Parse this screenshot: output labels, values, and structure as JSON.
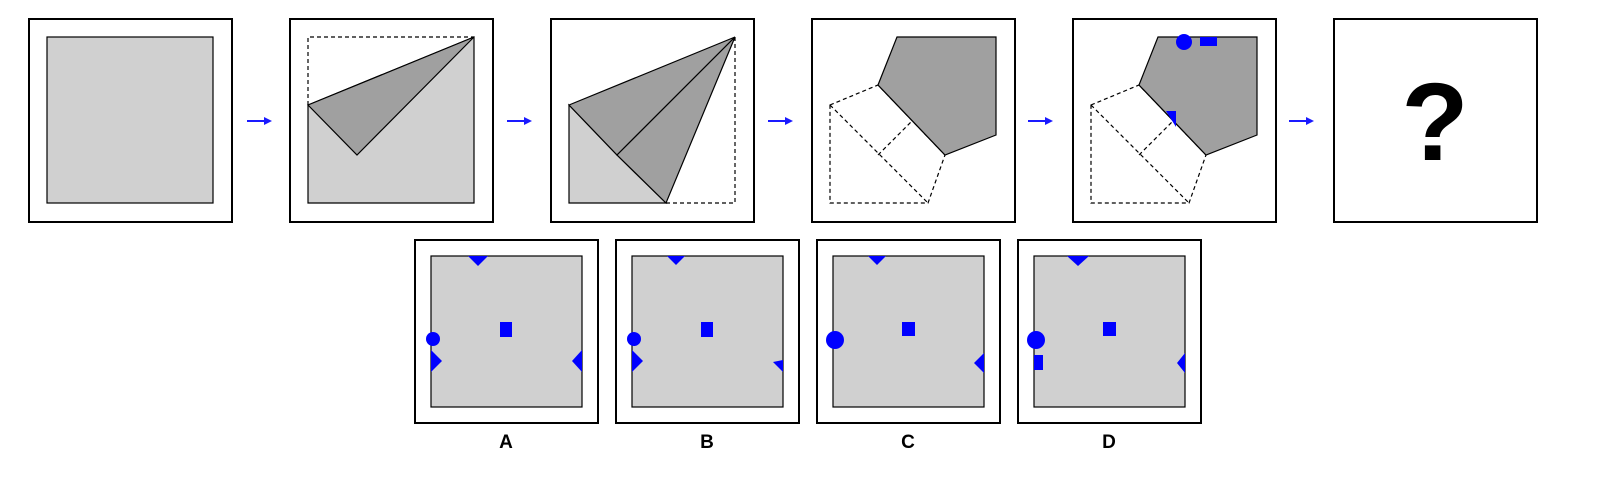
{
  "puzzle": {
    "question_mark": "?",
    "colors": {
      "paper": "#d0d0d0",
      "folded_flap": "#a0a0a0",
      "hole_punch": "#0000ff",
      "arrow": "#1a1aff",
      "frame": "#000000"
    },
    "sequence": [
      {
        "step": "unfolded-paper"
      },
      {
        "step": "fold-1"
      },
      {
        "step": "fold-2"
      },
      {
        "step": "fold-3"
      },
      {
        "step": "holes-punched"
      },
      {
        "step": "question"
      }
    ],
    "options": [
      {
        "label": "A",
        "holes": [
          "top-notch",
          "left-circle",
          "left-triangle",
          "center-square",
          "right-triangle"
        ]
      },
      {
        "label": "B",
        "holes": [
          "top-notch",
          "left-circle",
          "left-triangle",
          "center-square",
          "right-small-triangle"
        ]
      },
      {
        "label": "C",
        "holes": [
          "top-notch",
          "left-circle",
          "center-square",
          "right-triangle"
        ]
      },
      {
        "label": "D",
        "holes": [
          "top-notch",
          "left-circle",
          "left-rectangle",
          "center-square",
          "right-triangle"
        ]
      }
    ]
  }
}
